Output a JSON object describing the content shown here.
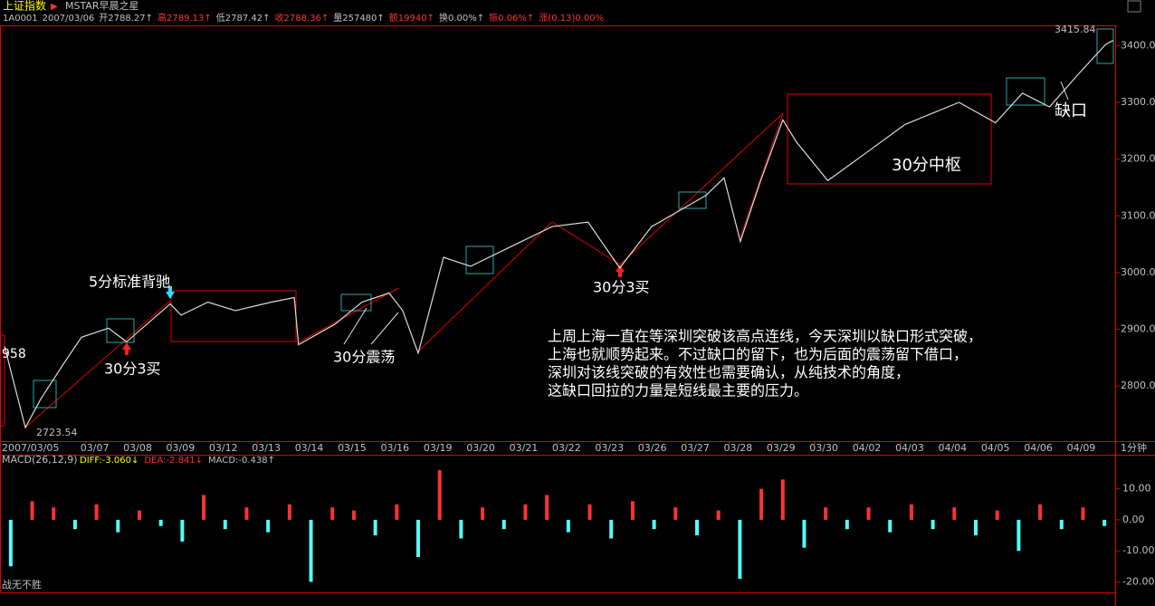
{
  "header": {
    "title": "上证指数",
    "template": "MSTAR早晨之星",
    "quote": [
      "1A0001",
      "2007/03/06",
      "开2788.27↑",
      "高2789.13↑",
      "低2787.42↑",
      "收2788.36↑",
      "量257480↑",
      "额19940↑",
      "换0.00%↑",
      "振0.06%↑",
      "涨(0.13)0.00%"
    ],
    "period": "1分钟",
    "footer": "战无不胜"
  },
  "chart_data": [
    {
      "type": "line",
      "categories": [
        "2007/03/05",
        null,
        "03/07",
        "03/08",
        "03/09",
        "03/12",
        "03/13",
        "03/14",
        "03/15",
        "03/16",
        "03/19",
        "03/20",
        "03/21",
        "03/22",
        "03/23",
        "03/26",
        "03/27",
        "03/28",
        "03/29",
        "03/30",
        "04/02",
        "04/03",
        "04/04",
        "04/05",
        "04/06",
        "04/09"
      ],
      "x": [
        0.11,
        0.21,
        0.59,
        0.95,
        1.48,
        1.9,
        2.53,
        2.95,
        3.97,
        4.22,
        4.85,
        5.49,
        6.33,
        6.86,
        6.96,
        7.81,
        8.44,
        9.07,
        9.39,
        9.75,
        10.34,
        10.97,
        12.03,
        12.87,
        13.71,
        14.45,
        15.19,
        16.46,
        16.88,
        17.26,
        17.72,
        18.25,
        18.57,
        19.3,
        20.25,
        21.1,
        22.36,
        23.21,
        23.84,
        24.47,
        25.11,
        25.78,
        25.95
      ],
      "values": [
        2870,
        2839,
        2727,
        2777,
        2839,
        2886,
        2902,
        2878,
        2945,
        2925,
        2948,
        2933,
        2948,
        2956,
        2873,
        2909,
        2948,
        2964,
        2933,
        2858,
        3027,
        3011,
        3050,
        3081,
        3089,
        3008,
        3081,
        3136,
        3167,
        3055,
        3159,
        3269,
        3230,
        3162,
        3214,
        3261,
        3300,
        3264,
        3316,
        3292,
        3347,
        3402,
        3409
      ],
      "color": "#dcdcdc",
      "xlim": [
        0,
        26
      ],
      "ylim": [
        2703,
        3434
      ],
      "yticks": [
        {
          "value": 2800,
          "label": "2800.0"
        },
        {
          "value": 2900,
          "label": "2900.0"
        },
        {
          "value": 3000,
          "label": "3000.0"
        },
        {
          "value": 3100,
          "label": "3100.0"
        },
        {
          "value": 3200,
          "label": "3200.0"
        },
        {
          "value": 3300,
          "label": "3300.0"
        },
        {
          "value": 3400,
          "label": "3400.0"
        }
      ],
      "max_label": 3415.84,
      "min_label": 2723.54,
      "edge_label": "958",
      "annotations": [
        "5分标准背驰",
        "30分3买",
        "30分震荡",
        "30分3买",
        "30分中枢",
        "缺口"
      ],
      "note": [
        "上周上海一直在等深圳突破该高点连线，今天深圳以缺口形式突破，",
        "上海也就顺势起来。不过缺口的留下，也为后面的震荡留下借口，",
        "深圳对该线突破的有效性也需要确认，从纯技术的角度，",
        "这缺口回拉的力量是短线最主要的压力。"
      ]
    },
    {
      "type": "bar",
      "title": "MACD(26,12,9)",
      "indicators": [
        "DIFF:-3.060↓",
        "DEA:-2.841↓",
        "MACD:-0.438↑"
      ],
      "values": [
        -15,
        6,
        4,
        -3,
        5,
        -4,
        3,
        -2,
        -7,
        8,
        -3,
        4,
        -4,
        5,
        -20,
        4,
        3,
        -5,
        5,
        -12,
        16,
        -6,
        4,
        -3,
        5,
        8,
        -4,
        5,
        -6,
        6,
        -3,
        4,
        -5,
        3,
        -19,
        10,
        13,
        -9,
        4,
        -3,
        4,
        -4,
        5,
        -3,
        4,
        -5,
        3,
        -10,
        5,
        -3,
        4,
        -2
      ],
      "colors": [
        "#ff3232",
        "#54fcfc"
      ],
      "ylim": [
        -23.4,
        20.7
      ],
      "yticks": [
        {
          "value": -20,
          "label": "-20.00"
        },
        {
          "value": -10,
          "label": "-10.00"
        },
        {
          "value": 0,
          "label": "0.00"
        },
        {
          "value": 10,
          "label": "10.00"
        }
      ]
    }
  ]
}
